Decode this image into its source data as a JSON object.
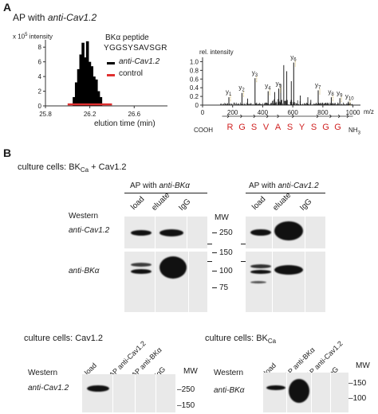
{
  "panelA": {
    "letter": "A",
    "title_prefix": "AP with ",
    "title_antibody": "anti-Cav1.2",
    "chart_left": {
      "type": "bar",
      "ylabel_scale": "x 10",
      "ylabel_exp": "5",
      "ylabel_text": " intensity",
      "yticks": [
        "8",
        "6",
        "4",
        "2",
        "0"
      ],
      "xticks": [
        "25.8",
        "26.2",
        "26.6"
      ],
      "xlabel": "elution time (min)",
      "xlim": [
        25.8,
        26.9
      ],
      "ylim": [
        0,
        9
      ],
      "peptide_label": "BKα peptide",
      "peptide_seq": "YGGSYSAVSGR",
      "series": [
        {
          "name": "anti-Cav1.2",
          "color": "#000000",
          "x": [
            26.06,
            26.08,
            26.1,
            26.12,
            26.14,
            26.16,
            26.18,
            26.2,
            26.22,
            26.24,
            26.26,
            26.28,
            26.3
          ],
          "values": [
            1.2,
            3.2,
            5.0,
            7.0,
            8.6,
            6.6,
            8.8,
            6.0,
            5.4,
            4.0,
            3.6,
            2.0,
            1.2
          ]
        },
        {
          "name": "control",
          "color": "#e03030",
          "x": [
            26.0,
            26.4
          ],
          "values": [
            0.1,
            0.1
          ]
        }
      ]
    },
    "chart_right": {
      "type": "bar",
      "ylabel": "rel. intensity",
      "yticks": [
        "1.0",
        "0.8",
        "0.6",
        "0.4",
        "0.2",
        "0"
      ],
      "xticks": [
        "0",
        "200",
        "400",
        "600",
        "800",
        "1000"
      ],
      "xunit": "m/z",
      "xlim": [
        0,
        1050
      ],
      "ylim": [
        0,
        1.1
      ],
      "peaks_labeled": [
        {
          "label": "y",
          "sub": "1",
          "x": 175,
          "y": 0.18
        },
        {
          "label": "y",
          "sub": "2",
          "x": 262,
          "y": 0.28
        },
        {
          "label": "y",
          "sub": "3",
          "x": 349,
          "y": 0.62
        },
        {
          "label": "y",
          "sub": "4",
          "x": 436,
          "y": 0.32
        },
        {
          "label": "y",
          "sub": "5",
          "x": 507,
          "y": 0.38
        },
        {
          "label": "y",
          "sub": "6",
          "x": 606,
          "y": 0.98
        },
        {
          "label": "y",
          "sub": "7",
          "x": 769,
          "y": 0.34
        },
        {
          "label": "y",
          "sub": "8",
          "x": 856,
          "y": 0.18
        },
        {
          "label": "y",
          "sub": "9",
          "x": 913,
          "y": 0.16
        },
        {
          "label": "y",
          "sub": "10",
          "x": 970,
          "y": 0.08
        }
      ],
      "peaks_unlabeled": [
        {
          "x": 540,
          "y": 0.92
        },
        {
          "x": 560,
          "y": 0.78
        },
        {
          "x": 590,
          "y": 0.55
        },
        {
          "x": 520,
          "y": 0.48
        },
        {
          "x": 480,
          "y": 0.3
        },
        {
          "x": 650,
          "y": 0.22
        },
        {
          "x": 700,
          "y": 0.18
        },
        {
          "x": 720,
          "y": 0.12
        },
        {
          "x": 300,
          "y": 0.15
        }
      ],
      "seq_left": "COOH",
      "seq_right": "NH",
      "seq_right_sub": "3",
      "sequence": [
        "R",
        "G",
        "S",
        "V",
        "A",
        "S",
        "Y",
        "S",
        "G",
        "G"
      ],
      "seq_color": "#d02020"
    }
  },
  "panelB": {
    "letter": "B",
    "culture_top": "culture cells: BK",
    "culture_top_sub": "Ca",
    "culture_top_tail": " + Cav1.2",
    "ap_left_prefix": "AP with ",
    "ap_left_antibody": "anti-BKα",
    "ap_right_prefix": "AP with ",
    "ap_right_antibody": "anti-Cav1.2",
    "lanes_left": [
      "load",
      "eluate",
      "IgG"
    ],
    "lanes_right": [
      "load",
      "eluate",
      "IgG"
    ],
    "western": "Western",
    "row1_antibody": "anti-Cav1.2",
    "row2_antibody": "anti-BKα",
    "mw": "MW",
    "mw_markers": [
      "250",
      "150",
      "100",
      "75"
    ],
    "bottom_left": {
      "culture": "culture cells: Cav1.2",
      "western": "Western",
      "antibody": "anti-Cav1.2",
      "lanes": [
        "load",
        "AP anti-Cav1.2",
        "AP anti-BKα",
        "IgG"
      ],
      "mw": "MW",
      "mw_markers": [
        "250",
        "150"
      ]
    },
    "bottom_right": {
      "culture": "culture cells: BK",
      "culture_sub": "Ca",
      "western": "Western",
      "antibody": "anti-BKα",
      "lanes": [
        "load",
        "AP anti-BKα",
        "AP anti-Cav1.2",
        "IgG"
      ],
      "mw": "MW",
      "mw_markers": [
        "150",
        "100"
      ]
    }
  }
}
